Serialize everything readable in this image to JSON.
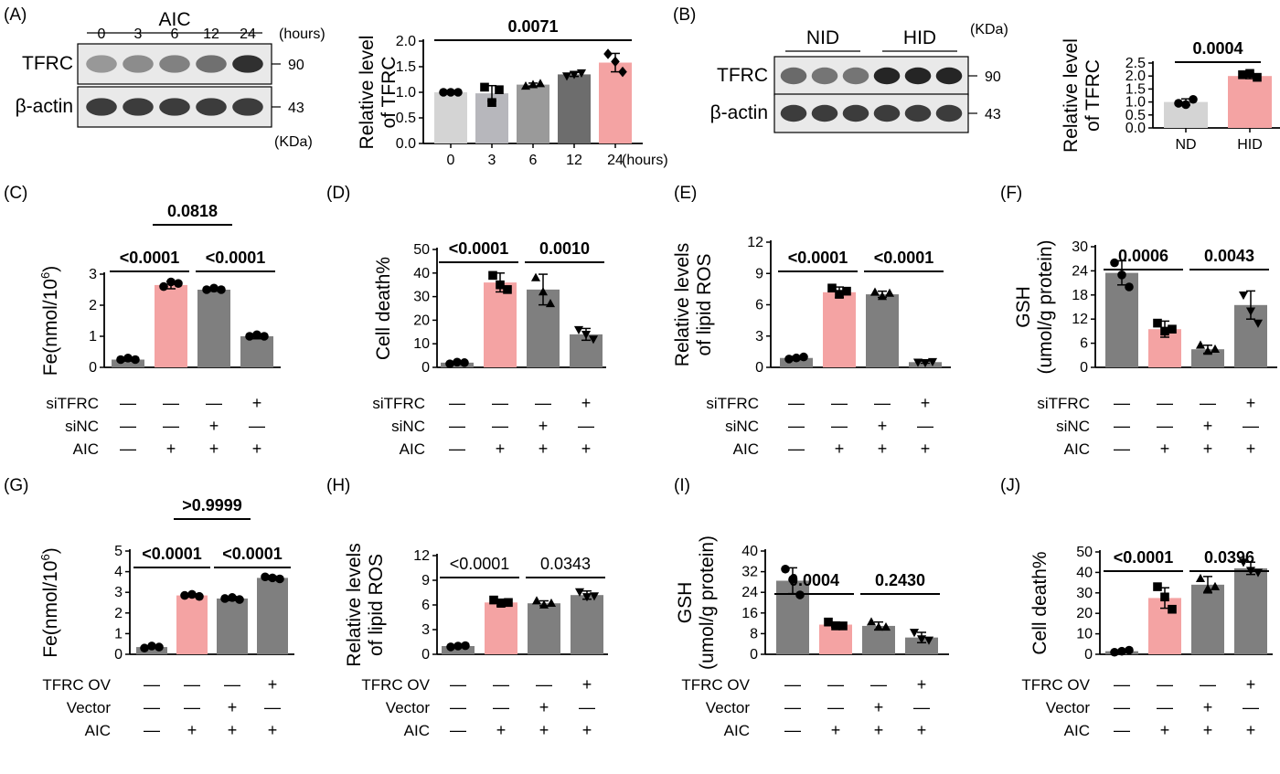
{
  "chart_data": [
    {
      "panel": "(A)",
      "type": "western-blot",
      "header": "AIC",
      "lanes": [
        "0",
        "3",
        "6",
        "12",
        "24"
      ],
      "lane_unit": "(hours)",
      "rows": [
        {
          "label": "TFRC",
          "mw": "90",
          "intensity": [
            0.45,
            0.5,
            0.55,
            0.62,
            0.9
          ]
        },
        {
          "label": "β-actin",
          "mw": "43",
          "intensity": [
            0.85,
            0.85,
            0.85,
            0.85,
            0.85
          ]
        }
      ],
      "mw_unit": "(KDa)"
    },
    {
      "panel": "",
      "type": "bar",
      "categories": [
        "0",
        "3",
        "6",
        "12",
        "24"
      ],
      "values": [
        1.0,
        0.98,
        1.15,
        1.35,
        1.58
      ],
      "errors": [
        0.0,
        0.15,
        0.03,
        0.04,
        0.18
      ],
      "points": [
        [
          1.0,
          1.0,
          1.0
        ],
        [
          1.1,
          0.8,
          1.05
        ],
        [
          1.12,
          1.15,
          1.17
        ],
        [
          1.32,
          1.35,
          1.38
        ],
        [
          1.75,
          1.6,
          1.4
        ]
      ],
      "markers": [
        "circle",
        "square",
        "triangle",
        "triangle-down",
        "diamond"
      ],
      "colors": [
        "#d4d4d4",
        "#b7b7bc",
        "#9a9a9a",
        "#6d6d6d",
        "#f4a3a3"
      ],
      "ylabel": "Relative level of TFRC",
      "xlabel": "(hours)",
      "ylim": [
        0,
        2.0
      ],
      "yticks": [
        "0.0",
        "0.5",
        "1.0",
        "1.5",
        "2.0"
      ],
      "comparisons": [
        {
          "from": 0,
          "to": 4,
          "label": "0.0071",
          "bold": true
        }
      ]
    },
    {
      "panel": "(B)",
      "type": "western-blot",
      "groups": [
        "NID",
        "HID"
      ],
      "rows": [
        {
          "label": "TFRC",
          "mw": "90",
          "intensity": [
            0.65,
            0.6,
            0.6,
            0.95,
            0.95,
            0.95
          ]
        },
        {
          "label": "β-actin",
          "mw": "43",
          "intensity": [
            0.85,
            0.85,
            0.85,
            0.85,
            0.85,
            0.85
          ]
        }
      ],
      "mw_unit": "(KDa)"
    },
    {
      "panel": "",
      "type": "bar",
      "categories": [
        "ND",
        "HID"
      ],
      "values": [
        1.0,
        2.0
      ],
      "errors": [
        0.12,
        0.1
      ],
      "points": [
        [
          0.95,
          0.9,
          1.1
        ],
        [
          2.05,
          2.1,
          1.95
        ]
      ],
      "markers": [
        "circle",
        "square"
      ],
      "colors": [
        "#d4d4d4",
        "#f4a3a3"
      ],
      "ylabel": "Relative level of TFRC",
      "ylim": [
        0,
        2.5
      ],
      "yticks": [
        "0.0",
        "0.5",
        "1.0",
        "1.5",
        "2.0",
        "2.5"
      ],
      "comparisons": [
        {
          "from": 0,
          "to": 1,
          "label": "0.0004",
          "bold": true
        }
      ]
    },
    {
      "panel": "(C)",
      "type": "bar",
      "values": [
        0.25,
        2.65,
        2.5,
        1.0
      ],
      "errors": [
        0.05,
        0.12,
        0.05,
        0.08
      ],
      "points": [
        [
          0.25,
          0.3,
          0.25
        ],
        [
          2.6,
          2.75,
          2.7
        ],
        [
          2.5,
          2.55,
          2.5
        ],
        [
          1.0,
          1.05,
          1.0
        ]
      ],
      "marker": "circle",
      "colors": [
        "#7f7f7f",
        "#f4a3a3",
        "#7f7f7f",
        "#7f7f7f"
      ],
      "ylabel": "Fe(nmol/10",
      "ylabel_sup": "6",
      "ylabel_end": ")",
      "ylim": [
        0,
        3
      ],
      "yticks": [
        "0",
        "1",
        "2",
        "3"
      ],
      "conditions": [
        {
          "name": "siTFRC",
          "signs": [
            "—",
            "—",
            "—",
            "+"
          ]
        },
        {
          "name": "siNC",
          "signs": [
            "—",
            "—",
            "+",
            "—"
          ]
        },
        {
          "name": "AIC",
          "signs": [
            "—",
            "+",
            "+",
            "+"
          ]
        }
      ],
      "comparisons": [
        {
          "from": 0,
          "to": 1,
          "label": "<0.0001",
          "bold": true,
          "level": 1
        },
        {
          "from": 1,
          "to": 2,
          "label": "0.0818",
          "bold": true,
          "level": 2
        },
        {
          "from": 2,
          "to": 3,
          "label": "<0.0001",
          "bold": true,
          "level": 1
        }
      ]
    },
    {
      "panel": "(D)",
      "type": "bar",
      "values": [
        2.0,
        36.0,
        33.0,
        14.0
      ],
      "errors": [
        0.5,
        4.0,
        6.5,
        2.5
      ],
      "points": [
        [
          1.5,
          2.2,
          2.0
        ],
        [
          39.0,
          35.0,
          33.0
        ],
        [
          38.0,
          32.0,
          27.0
        ],
        [
          16.0,
          14.0,
          12.0
        ]
      ],
      "markers": [
        "circle",
        "square",
        "triangle",
        "triangle-down"
      ],
      "colors": [
        "#7f7f7f",
        "#f4a3a3",
        "#7f7f7f",
        "#7f7f7f"
      ],
      "ylabel": "Cell death%",
      "ylim": [
        0,
        50
      ],
      "yticks": [
        "0",
        "10",
        "20",
        "30",
        "40",
        "50"
      ],
      "conditions": [
        {
          "name": "siTFRC",
          "signs": [
            "—",
            "—",
            "—",
            "+"
          ]
        },
        {
          "name": "siNC",
          "signs": [
            "—",
            "—",
            "+",
            "—"
          ]
        },
        {
          "name": "AIC",
          "signs": [
            "—",
            "+",
            "+",
            "+"
          ]
        }
      ],
      "comparisons": [
        {
          "from": 0,
          "to": 1,
          "label": "<0.0001",
          "bold": true,
          "level": 1
        },
        {
          "from": 2,
          "to": 3,
          "label": "0.0010",
          "bold": true,
          "level": 1
        }
      ]
    },
    {
      "panel": "(E)",
      "type": "bar",
      "values": [
        0.9,
        7.2,
        7.0,
        0.5
      ],
      "errors": [
        0.15,
        0.5,
        0.3,
        0.1
      ],
      "points": [
        [
          0.8,
          0.9,
          1.0
        ],
        [
          7.6,
          7.0,
          7.3
        ],
        [
          7.2,
          6.8,
          7.1
        ],
        [
          0.5,
          0.45,
          0.55
        ]
      ],
      "markers": [
        "circle",
        "square",
        "triangle",
        "triangle-down"
      ],
      "colors": [
        "#7f7f7f",
        "#f4a3a3",
        "#7f7f7f",
        "#7f7f7f"
      ],
      "ylabel": "Relative levels of lipid ROS",
      "ylim": [
        0,
        12
      ],
      "yticks": [
        "0",
        "3",
        "6",
        "9",
        "12"
      ],
      "conditions": [
        {
          "name": "siTFRC",
          "signs": [
            "—",
            "—",
            "—",
            "+"
          ]
        },
        {
          "name": "siNC",
          "signs": [
            "—",
            "—",
            "+",
            "—"
          ]
        },
        {
          "name": "AIC",
          "signs": [
            "—",
            "+",
            "+",
            "+"
          ]
        }
      ],
      "comparisons": [
        {
          "from": 0,
          "to": 1,
          "label": "<0.0001",
          "bold": true,
          "level": 1
        },
        {
          "from": 2,
          "to": 3,
          "label": "<0.0001",
          "bold": true,
          "level": 1
        }
      ]
    },
    {
      "panel": "(F)",
      "type": "bar",
      "values": [
        23.5,
        9.5,
        4.5,
        15.5
      ],
      "errors": [
        3.0,
        2.0,
        1.0,
        3.5
      ],
      "points": [
        [
          26.0,
          23.0,
          20.0
        ],
        [
          11.0,
          9.0,
          9.5
        ],
        [
          5.5,
          4.0,
          4.5
        ],
        [
          18.0,
          14.0,
          11.0
        ]
      ],
      "markers": [
        "circle",
        "square",
        "triangle",
        "triangle-down"
      ],
      "colors": [
        "#7f7f7f",
        "#f4a3a3",
        "#7f7f7f",
        "#7f7f7f"
      ],
      "ylabel": "GSH",
      "ylabel2": "(umol/g protein)",
      "ylim": [
        0,
        30
      ],
      "yticks": [
        "0",
        "6",
        "12",
        "18",
        "24",
        "30"
      ],
      "conditions": [
        {
          "name": "siTFRC",
          "signs": [
            "—",
            "—",
            "—",
            "+"
          ]
        },
        {
          "name": "siNC",
          "signs": [
            "—",
            "—",
            "+",
            "—"
          ]
        },
        {
          "name": "AIC",
          "signs": [
            "—",
            "+",
            "+",
            "+"
          ]
        }
      ],
      "comparisons": [
        {
          "from": 0,
          "to": 1,
          "label": "0.0006",
          "bold": true,
          "level": 1
        },
        {
          "from": 2,
          "to": 3,
          "label": "0.0043",
          "bold": true,
          "level": 1
        }
      ]
    },
    {
      "panel": "(G)",
      "type": "bar",
      "values": [
        0.35,
        2.85,
        2.7,
        3.7
      ],
      "errors": [
        0.05,
        0.08,
        0.1,
        0.08
      ],
      "points": [
        [
          0.3,
          0.4,
          0.35
        ],
        [
          2.85,
          2.9,
          2.8
        ],
        [
          2.7,
          2.75,
          2.65
        ],
        [
          3.75,
          3.7,
          3.65
        ]
      ],
      "marker": "circle",
      "colors": [
        "#7f7f7f",
        "#f4a3a3",
        "#7f7f7f",
        "#7f7f7f"
      ],
      "ylabel": "Fe(nmol/10",
      "ylabel_sup": "6",
      "ylabel_end": ")",
      "ylim": [
        0,
        5
      ],
      "yticks": [
        "0",
        "1",
        "2",
        "3",
        "4",
        "5"
      ],
      "conditions": [
        {
          "name": "TFRC OV",
          "signs": [
            "—",
            "—",
            "—",
            "+"
          ]
        },
        {
          "name": "Vector",
          "signs": [
            "—",
            "—",
            "+",
            "—"
          ]
        },
        {
          "name": "AIC",
          "signs": [
            "—",
            "+",
            "+",
            "+"
          ]
        }
      ],
      "comparisons": [
        {
          "from": 0,
          "to": 1,
          "label": "<0.0001",
          "bold": true,
          "level": 1
        },
        {
          "from": 1,
          "to": 2,
          "label": ">0.9999",
          "bold": true,
          "level": 2
        },
        {
          "from": 2,
          "to": 3,
          "label": "<0.0001",
          "bold": true,
          "level": 1
        }
      ]
    },
    {
      "panel": "(H)",
      "type": "bar",
      "values": [
        1.0,
        6.3,
        6.2,
        7.2
      ],
      "errors": [
        0.1,
        0.4,
        0.3,
        0.5
      ],
      "points": [
        [
          0.9,
          1.0,
          1.05
        ],
        [
          6.6,
          6.2,
          6.3
        ],
        [
          6.5,
          6.0,
          6.2
        ],
        [
          7.6,
          7.0,
          7.1
        ]
      ],
      "markers": [
        "circle",
        "square",
        "triangle",
        "triangle-down"
      ],
      "colors": [
        "#7f7f7f",
        "#f4a3a3",
        "#7f7f7f",
        "#7f7f7f"
      ],
      "ylabel": "Relative levels of lipid ROS",
      "ylim": [
        0,
        12
      ],
      "yticks": [
        "0",
        "3",
        "6",
        "9",
        "12"
      ],
      "conditions": [
        {
          "name": "TFRC OV",
          "signs": [
            "—",
            "—",
            "—",
            "+"
          ]
        },
        {
          "name": "Vector",
          "signs": [
            "—",
            "—",
            "+",
            "—"
          ]
        },
        {
          "name": "AIC",
          "signs": [
            "—",
            "+",
            "+",
            "+"
          ]
        }
      ],
      "comparisons": [
        {
          "from": 0,
          "to": 1,
          "label": "<0.0001",
          "bold": false,
          "level": 1
        },
        {
          "from": 2,
          "to": 3,
          "label": "0.0343",
          "bold": false,
          "level": 1
        }
      ]
    },
    {
      "panel": "(I)",
      "type": "bar",
      "values": [
        28.5,
        11.5,
        11.0,
        6.5
      ],
      "errors": [
        5.0,
        1.0,
        1.5,
        2.0
      ],
      "points": [
        [
          33.0,
          29.0,
          23.0
        ],
        [
          12.5,
          11.0,
          11.0
        ],
        [
          12.5,
          10.5,
          10.5
        ],
        [
          8.5,
          6.0,
          5.5
        ]
      ],
      "markers": [
        "circle",
        "square",
        "triangle",
        "triangle-down"
      ],
      "colors": [
        "#7f7f7f",
        "#f4a3a3",
        "#7f7f7f",
        "#7f7f7f"
      ],
      "ylabel": "GSH",
      "ylabel2": "(umol/g protein)",
      "ylim": [
        0,
        40
      ],
      "yticks": [
        "0",
        "8",
        "16",
        "24",
        "32",
        "40"
      ],
      "conditions": [
        {
          "name": "TFRC OV",
          "signs": [
            "—",
            "—",
            "—",
            "+"
          ]
        },
        {
          "name": "Vector",
          "signs": [
            "—",
            "—",
            "+",
            "—"
          ]
        },
        {
          "name": "AIC",
          "signs": [
            "—",
            "+",
            "+",
            "+"
          ]
        }
      ],
      "comparisons": [
        {
          "from": 0,
          "to": 1,
          "label": "0.0004",
          "bold": true,
          "level": 1
        },
        {
          "from": 2,
          "to": 3,
          "label": "0.2430",
          "bold": true,
          "level": 1
        }
      ]
    },
    {
      "panel": "(J)",
      "type": "bar",
      "values": [
        1.5,
        27.5,
        34.0,
        42.0
      ],
      "errors": [
        0.5,
        5.0,
        4.0,
        3.0
      ],
      "points": [
        [
          1.0,
          1.5,
          2.0
        ],
        [
          33.0,
          28.0,
          22.0
        ],
        [
          37.0,
          32.0,
          33.0
        ],
        [
          45.0,
          41.0,
          40.0
        ]
      ],
      "markers": [
        "circle",
        "square",
        "triangle",
        "triangle-down"
      ],
      "colors": [
        "#7f7f7f",
        "#f4a3a3",
        "#7f7f7f",
        "#7f7f7f"
      ],
      "ylabel": "Cell death%",
      "ylim": [
        0,
        50
      ],
      "yticks": [
        "0",
        "10",
        "20",
        "30",
        "40",
        "50"
      ],
      "conditions": [
        {
          "name": "TFRC OV",
          "signs": [
            "—",
            "—",
            "—",
            "+"
          ]
        },
        {
          "name": "Vector",
          "signs": [
            "—",
            "—",
            "+",
            "—"
          ]
        },
        {
          "name": "AIC",
          "signs": [
            "—",
            "+",
            "+",
            "+"
          ]
        }
      ],
      "comparisons": [
        {
          "from": 0,
          "to": 1,
          "label": "<0.0001",
          "bold": true,
          "level": 1
        },
        {
          "from": 2,
          "to": 3,
          "label": "0.0396",
          "bold": true,
          "level": 1
        }
      ]
    }
  ]
}
